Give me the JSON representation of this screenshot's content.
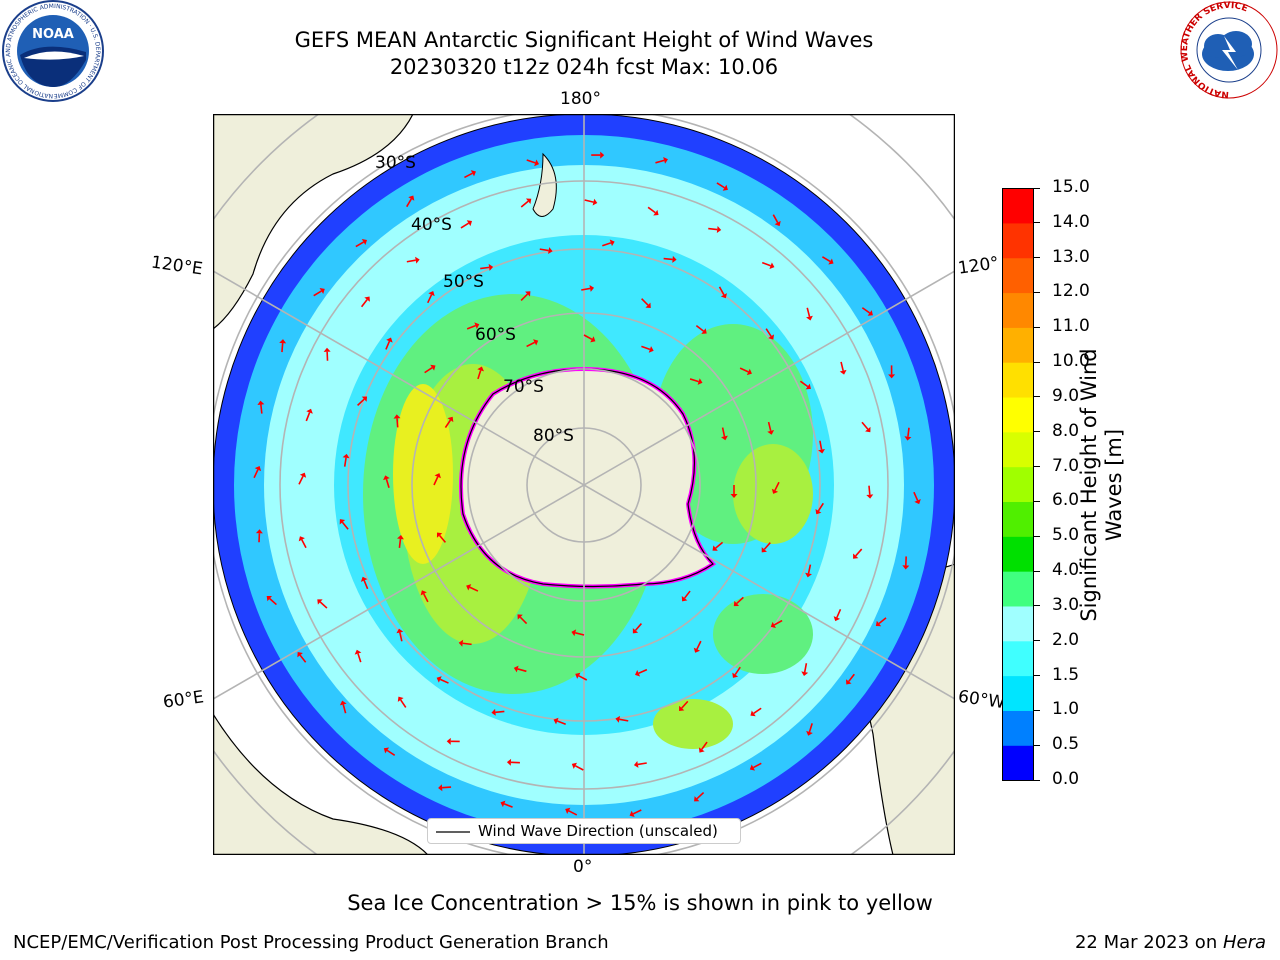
{
  "header": {
    "title_line1": "GEFS MEAN Antarctic Significant Height of Wind Waves",
    "title_line2": "20230320 t12z 024h fcst   Max: 10.06"
  },
  "logos": {
    "noa_text": "NOAA",
    "noaa_ring_text": "NATIONAL OCEANIC AND ATMOSPHERIC ADMINISTRATION · U.S. DEPARTMENT OF COMMERCE",
    "nws_ring_text": "NATIONAL WEATHER SERVICE"
  },
  "map": {
    "lon_labels": {
      "top": "180°",
      "bottom": "0°",
      "upper_left": "120°E",
      "upper_right": "120°",
      "lower_left": "60°E",
      "lower_right": "60°W"
    },
    "lat_labels": [
      "30°S",
      "40°S",
      "50°S",
      "60°S",
      "70°S",
      "80°S"
    ],
    "legend_label": "Wind Wave Direction (unscaled)"
  },
  "colorbar": {
    "label_line1": "Significant Height of Wind",
    "label_line2": "Waves [m]",
    "ticks": [
      "0.0",
      "0.5",
      "1.0",
      "1.5",
      "2.0",
      "3.0",
      "4.0",
      "5.0",
      "6.0",
      "7.0",
      "8.0",
      "9.0",
      "10.0",
      "11.0",
      "12.0",
      "13.0",
      "14.0",
      "15.0"
    ],
    "colors": [
      "#0000ff",
      "#0080ff",
      "#00e5ff",
      "#40ffff",
      "#a0ffff",
      "#40ff80",
      "#00e000",
      "#50ef00",
      "#a0ff00",
      "#d8ff00",
      "#ffff00",
      "#ffe000",
      "#ffb000",
      "#ff8800",
      "#ff6000",
      "#ff3300",
      "#ff0000"
    ]
  },
  "footer": {
    "caption": "Sea Ice Concentration > 15% is shown in pink to yellow",
    "left": "NCEP/EMC/Verification Post Processing Product Generation Branch",
    "right_prefix": "22 Mar 2023 on ",
    "right_host": "Hera"
  }
}
